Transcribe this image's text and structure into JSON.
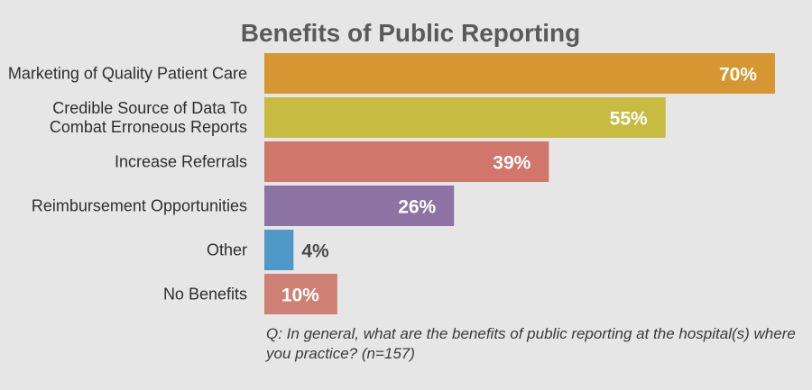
{
  "chart_data": {
    "type": "bar",
    "orientation": "horizontal",
    "title": "Benefits of Public Reporting",
    "categories": [
      [
        "Marketing of Quality Patient Care"
      ],
      [
        "Credible Source of Data To",
        "Combat Erroneous Reports"
      ],
      [
        "Increase Referrals"
      ],
      [
        "Reimbursement Opportunities"
      ],
      [
        "Other"
      ],
      [
        "No Benefits"
      ]
    ],
    "values": [
      70,
      55,
      39,
      26,
      4,
      10
    ],
    "value_labels": [
      "70%",
      "55%",
      "39%",
      "26%",
      "4%",
      "10%"
    ],
    "colors": [
      "#d69733",
      "#c8bb42",
      "#d1766a",
      "#8c73a4",
      "#4f98c7",
      "#cf8075"
    ],
    "label_colors": [
      "#ffffff",
      "#ffffff",
      "#ffffff",
      "#ffffff",
      "#4a4a4a",
      "#ffffff"
    ],
    "xlim": [
      0,
      70
    ],
    "grid": false,
    "legend": false
  },
  "footnote": "Q: In general, what are the benefits of public reporting at the hospital(s) where you practice? (n=157)"
}
